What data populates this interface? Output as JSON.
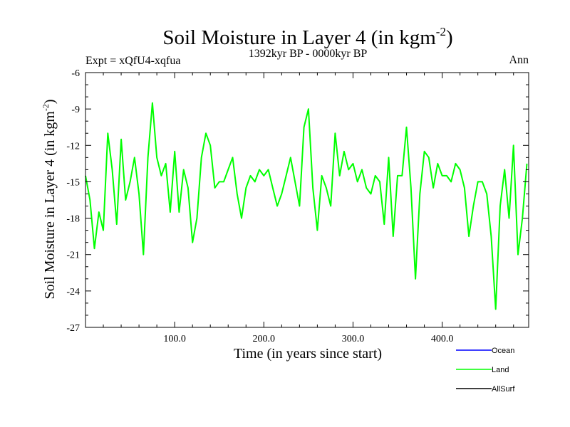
{
  "chart_data": {
    "type": "line",
    "title": "Soil Moisture in Layer 4 (in kgm",
    "title_sup": "-2",
    "title_close": ")",
    "subtitle_left": "Expt = xQfU4-xqfua",
    "subtitle_center": "1392kyr BP - 0000kyr BP",
    "subtitle_right": "Ann",
    "xlabel": "Time (in years since start)",
    "ylabel": "Soil Moisture in Layer 4 (in kgm",
    "ylabel_sup": "-2",
    "ylabel_close": ")",
    "xlim": [
      0,
      497
    ],
    "ylim": [
      -27,
      -6
    ],
    "x_ticks": [
      100,
      200,
      300,
      400
    ],
    "x_tick_labels": [
      "100.0",
      "200.0",
      "300.0",
      "400.0"
    ],
    "y_ticks": [
      -6,
      -9,
      -12,
      -15,
      -18,
      -21,
      -24,
      -27
    ],
    "y_tick_labels": [
      "-6",
      "-9",
      "-12",
      "-15",
      "-18",
      "-21",
      "-24",
      "-27"
    ],
    "legend": [
      {
        "name": "Ocean",
        "color": "#0000ff"
      },
      {
        "name": "Land",
        "color": "#00ff00"
      },
      {
        "name": "AllSurf",
        "color": "#000000"
      }
    ],
    "series": [
      {
        "name": "Land",
        "color": "#00ff00",
        "x_start": 0,
        "x_step": 5,
        "values": [
          -14.5,
          -16.5,
          -20.5,
          -17.5,
          -19.0,
          -11.0,
          -14.0,
          -18.5,
          -11.5,
          -16.5,
          -15.0,
          -13.0,
          -16.0,
          -21.0,
          -13.0,
          -8.5,
          -13.0,
          -14.5,
          -13.5,
          -17.5,
          -12.5,
          -17.5,
          -14.0,
          -15.5,
          -20.0,
          -18.0,
          -13.0,
          -11.0,
          -12.0,
          -15.5,
          -15.0,
          -15.0,
          -14.0,
          -13.0,
          -16.0,
          -18.0,
          -15.5,
          -14.5,
          -15.0,
          -14.0,
          -14.5,
          -14.0,
          -15.5,
          -17.0,
          -16.0,
          -14.5,
          -13.0,
          -15.0,
          -17.0,
          -10.5,
          -9.0,
          -15.5,
          -19.0,
          -14.5,
          -15.5,
          -17.0,
          -11.0,
          -14.5,
          -12.5,
          -14.0,
          -13.5,
          -15.0,
          -14.0,
          -15.5,
          -16.0,
          -14.5,
          -15.0,
          -18.5,
          -13.0,
          -19.5,
          -14.5,
          -14.5,
          -10.5,
          -15.5,
          -23.0,
          -16.0,
          -12.5,
          -13.0,
          -15.5,
          -13.5,
          -14.5,
          -14.5,
          -15.0,
          -13.5,
          -14.0,
          -15.5,
          -19.5,
          -17.0,
          -15.0,
          -15.0,
          -16.0,
          -19.5,
          -25.5,
          -17.0,
          -14.0,
          -18.0,
          -12.0,
          -21.0,
          -18.0,
          -13.5
        ]
      }
    ]
  }
}
